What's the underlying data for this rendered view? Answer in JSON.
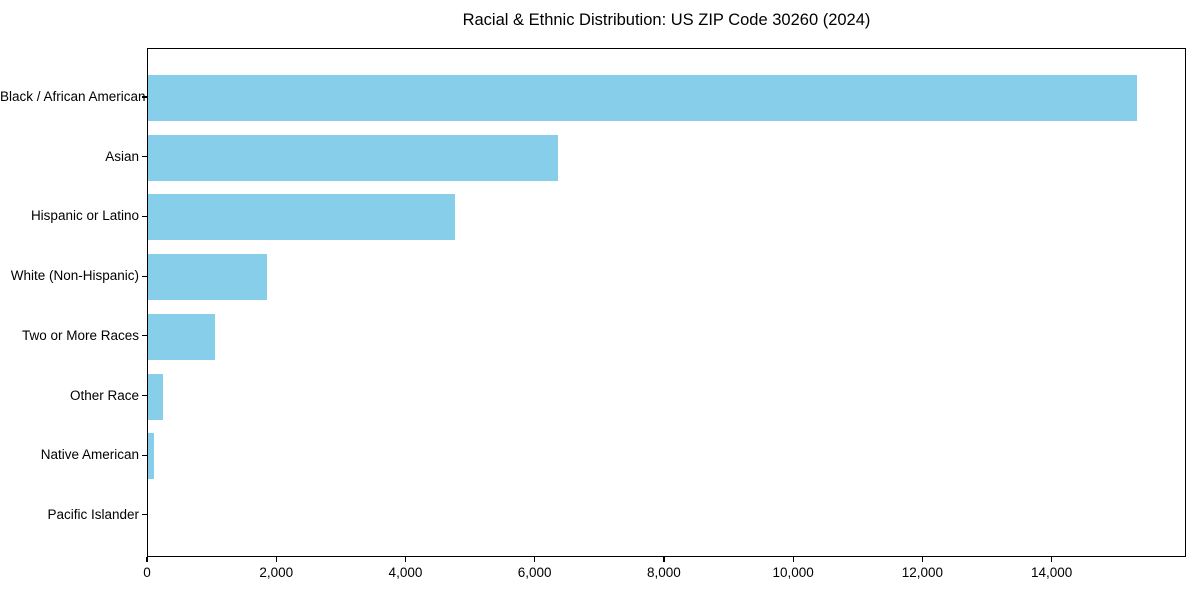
{
  "figure": {
    "title": "Racial & Ethnic Distribution: US ZIP Code 30260 (2024)"
  },
  "colors": {
    "bar": "#87CEEB",
    "axis": "#000000",
    "text": "#000000",
    "background": "#ffffff"
  },
  "chart_data": {
    "type": "bar",
    "orientation": "horizontal",
    "title": "Racial & Ethnic Distribution: US ZIP Code 30260 (2024)",
    "categories": [
      "Black / African American",
      "Asian",
      "Hispanic or Latino",
      "White (Non-Hispanic)",
      "Two or More Races",
      "Other Race",
      "Native American",
      "Pacific Islander"
    ],
    "values": [
      15300,
      6350,
      4750,
      1840,
      1030,
      230,
      100,
      0
    ],
    "xlabel": "",
    "ylabel": "",
    "xlim": [
      0,
      16080
    ],
    "x_ticks": [
      0,
      2000,
      4000,
      6000,
      8000,
      10000,
      12000,
      14000
    ],
    "x_tick_labels": [
      "0",
      "2,000",
      "4,000",
      "6,000",
      "8,000",
      "10,000",
      "12,000",
      "14,000"
    ],
    "grid": false,
    "legend": null,
    "bar_color": "#87CEEB"
  }
}
